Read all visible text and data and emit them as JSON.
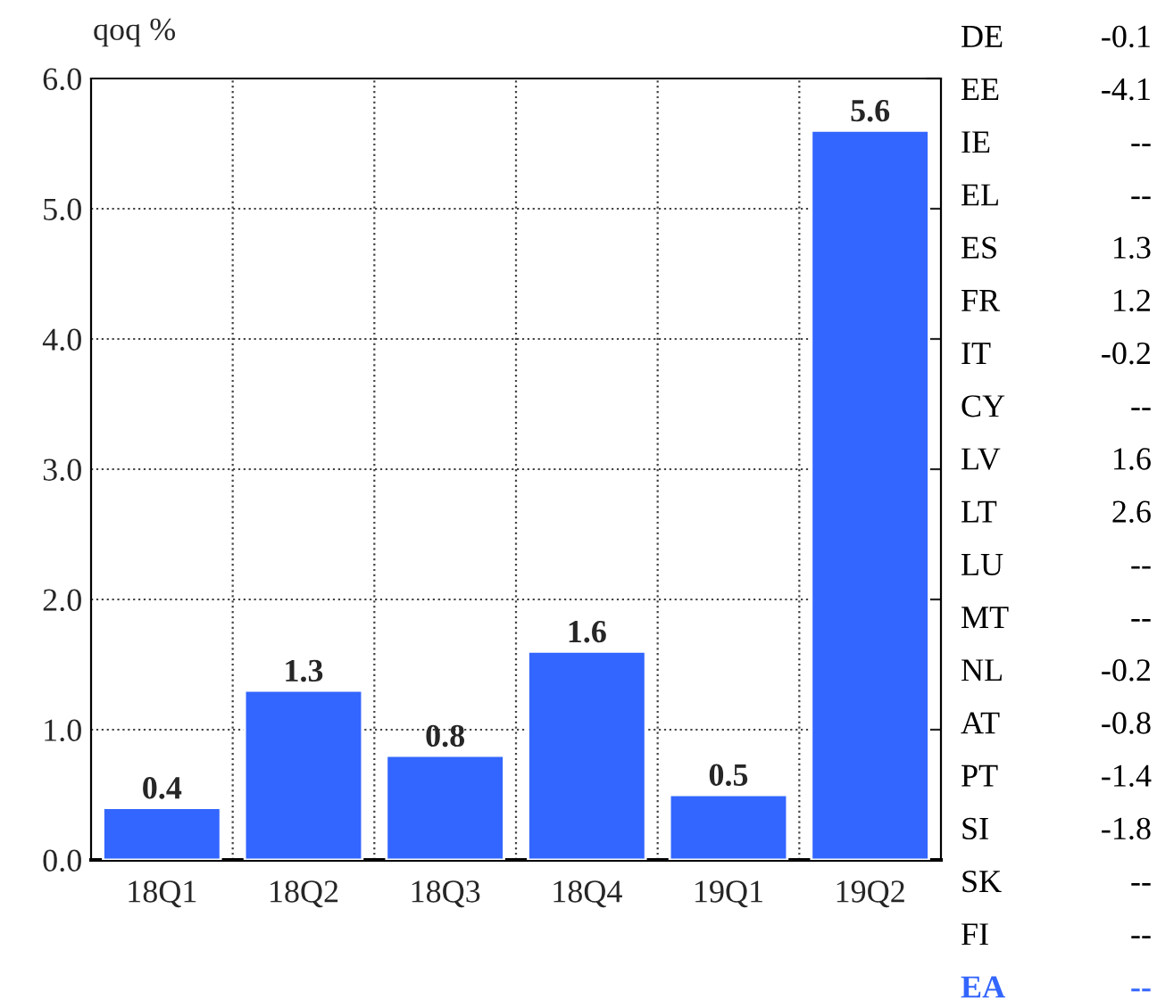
{
  "chart_data": {
    "type": "bar",
    "ylabel": "qoq %",
    "categories": [
      "18Q1",
      "18Q2",
      "18Q3",
      "18Q4",
      "19Q1",
      "19Q2"
    ],
    "values": [
      0.4,
      1.3,
      0.8,
      1.6,
      0.5,
      5.6
    ],
    "color": "#3366ff",
    "ylim": [
      0,
      6
    ],
    "yticks": [
      {
        "value": 0,
        "label": "0.0"
      },
      {
        "value": 1,
        "label": "1.0"
      },
      {
        "value": 2,
        "label": "2.0"
      },
      {
        "value": 3,
        "label": "3.0"
      },
      {
        "value": 4,
        "label": "4.0"
      },
      {
        "value": 5,
        "label": "5.0"
      },
      {
        "value": 6,
        "label": "6.0"
      }
    ],
    "grid": true,
    "data_labels": true,
    "annotations": [
      "DE",
      "-0.1",
      "EE",
      "-4.1",
      "IE",
      "--",
      "EL",
      "--",
      "ES",
      "1.3",
      "FR",
      "1.2",
      "IT",
      "-0.2",
      "CY",
      "--",
      "LV",
      "1.6",
      "LT",
      "2.6",
      "LU",
      "--",
      "MT",
      "--",
      "NL",
      "-0.2",
      "AT",
      "-0.8",
      "PT",
      "-1.4",
      "SI",
      "-1.8",
      "SK",
      "--",
      "FI",
      "--",
      "EA",
      "--"
    ]
  }
}
